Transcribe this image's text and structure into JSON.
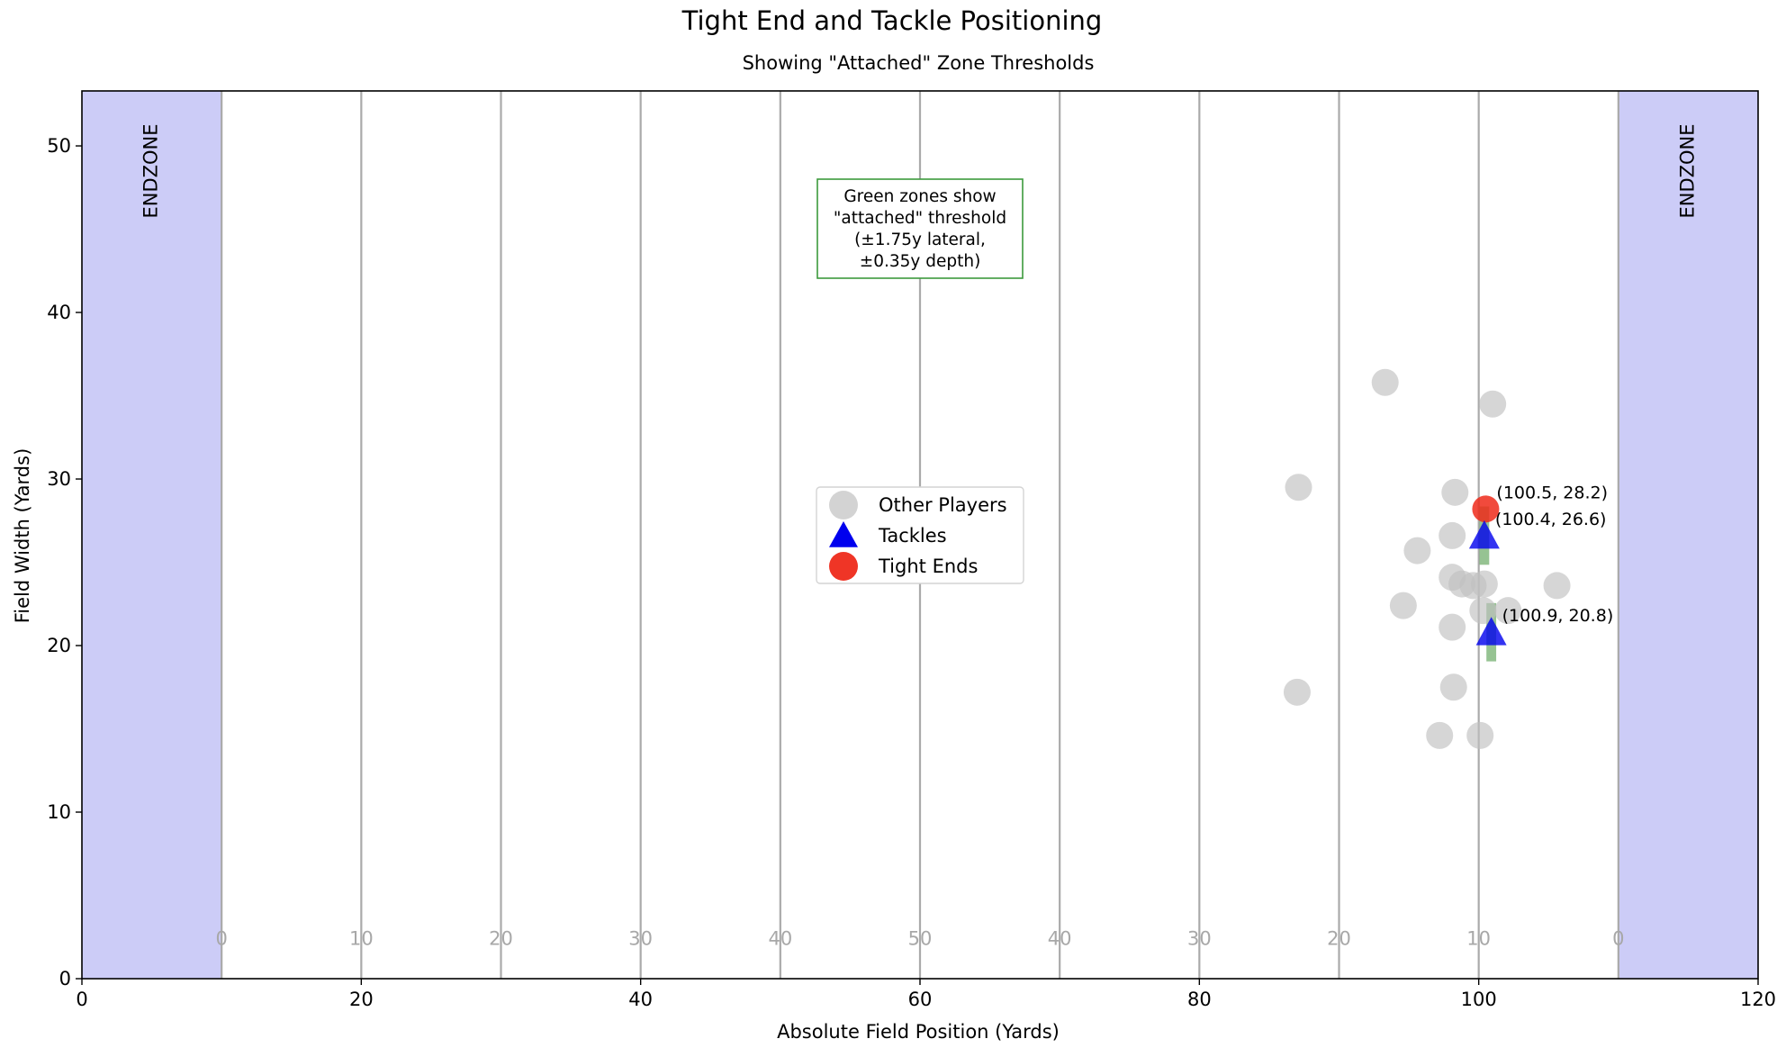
{
  "chart_data": {
    "type": "scatter",
    "title": "Tight End and Tackle Positioning",
    "subtitle": "Showing \"Attached\" Zone Thresholds",
    "xlabel": "Absolute Field Position (Yards)",
    "ylabel": "Field Width (Yards)",
    "xlim": [
      0,
      120
    ],
    "ylim": [
      0,
      53.3
    ],
    "x_ticks": [
      "0",
      "20",
      "40",
      "60",
      "80",
      "100",
      "120"
    ],
    "y_ticks": [
      "0",
      "10",
      "20",
      "30",
      "40",
      "50"
    ],
    "endzones": [
      {
        "label": "ENDZONE",
        "x_range": [
          0,
          10
        ]
      },
      {
        "label": "ENDZONE",
        "x_range": [
          110,
          120
        ]
      }
    ],
    "yard_lines": [
      {
        "x": 10,
        "label": "0"
      },
      {
        "x": 20,
        "label": "10"
      },
      {
        "x": 30,
        "label": "20"
      },
      {
        "x": 40,
        "label": "30"
      },
      {
        "x": 50,
        "label": "40"
      },
      {
        "x": 60,
        "label": "50"
      },
      {
        "x": 70,
        "label": "40"
      },
      {
        "x": 80,
        "label": "30"
      },
      {
        "x": 90,
        "label": "20"
      },
      {
        "x": 100,
        "label": "10"
      },
      {
        "x": 110,
        "label": "0"
      }
    ],
    "yard_number_y": 2.4,
    "series": [
      {
        "name": "Other Players",
        "marker": "circle",
        "color": "#c0c0c0",
        "points": [
          [
            93.3,
            35.8
          ],
          [
            101.0,
            34.5
          ],
          [
            87.1,
            29.5
          ],
          [
            98.3,
            29.2
          ],
          [
            98.1,
            26.6
          ],
          [
            95.6,
            25.7
          ],
          [
            98.1,
            24.1
          ],
          [
            98.8,
            23.7
          ],
          [
            99.6,
            23.6
          ],
          [
            100.4,
            23.7
          ],
          [
            105.6,
            23.6
          ],
          [
            94.6,
            22.4
          ],
          [
            100.3,
            22.1
          ],
          [
            102.1,
            22.1
          ],
          [
            98.1,
            21.1
          ],
          [
            87.0,
            17.2
          ],
          [
            98.2,
            17.5
          ],
          [
            97.2,
            14.6
          ],
          [
            100.1,
            14.6
          ]
        ]
      },
      {
        "name": "Tackles",
        "marker": "triangle",
        "color": "#0000ee",
        "points": [
          [
            100.4,
            26.6
          ],
          [
            100.9,
            20.8
          ]
        ]
      },
      {
        "name": "Tight Ends",
        "marker": "circle",
        "color": "#ee2a1a",
        "points": [
          [
            100.5,
            28.2
          ]
        ]
      }
    ],
    "attached_zones": [
      {
        "x": 100.4,
        "y": 26.6
      },
      {
        "x": 100.9,
        "y": 20.8
      }
    ],
    "zone_half_width": 0.35,
    "zone_half_height": 1.75,
    "point_labels": [
      {
        "x": 100.5,
        "y": 28.2,
        "text": "(100.5, 28.2)"
      },
      {
        "x": 100.4,
        "y": 26.6,
        "text": "(100.4, 26.6)"
      },
      {
        "x": 100.9,
        "y": 20.8,
        "text": "(100.9, 20.8)"
      }
    ],
    "annotation_box": {
      "lines": [
        "Green zones show",
        "\"attached\" threshold",
        "(±1.75y lateral,",
        "±0.35y depth)"
      ]
    },
    "legend_position": "center",
    "grid": false
  }
}
